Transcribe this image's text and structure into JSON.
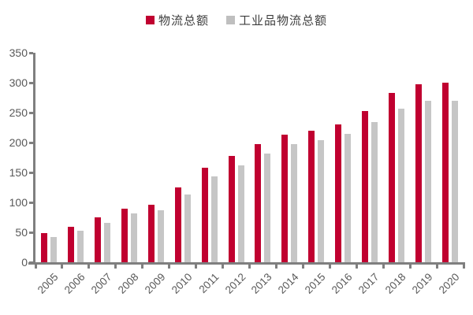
{
  "colors": {
    "series_red": "#C00030",
    "series_gray": "#C6C6C6",
    "legend_gray": "#BFBFBF",
    "axis": "#7F7F7F",
    "tick_label": "#595959"
  },
  "chart_data": {
    "type": "bar",
    "title": "",
    "xlabel": "",
    "ylabel": "",
    "grid": false,
    "legend_position": "top-center",
    "ylim": [
      0,
      350
    ],
    "yticks": [
      0,
      50,
      100,
      150,
      200,
      250,
      300,
      350
    ],
    "categories": [
      "2005",
      "2006",
      "2007",
      "2008",
      "2009",
      "2010",
      "2011",
      "2012",
      "2013",
      "2014",
      "2015",
      "2016",
      "2017",
      "2018",
      "2019",
      "2020"
    ],
    "series": [
      {
        "name": "物流总额",
        "color": "#C00030",
        "values": [
          48.1,
          59.6,
          75.2,
          89.9,
          96.7,
          125.4,
          158.4,
          177.3,
          197.8,
          213.5,
          219.2,
          229.7,
          252.8,
          283.1,
          298.0,
          300.1
        ]
      },
      {
        "name": "工业品物流总额",
        "color": "#C6C6C6",
        "values": [
          42.6,
          52.7,
          66.1,
          81.1,
          87.4,
          113.1,
          143.6,
          162.0,
          181.5,
          196.9,
          204.0,
          214.2,
          234.5,
          256.8,
          269.6,
          269.9
        ]
      }
    ]
  }
}
